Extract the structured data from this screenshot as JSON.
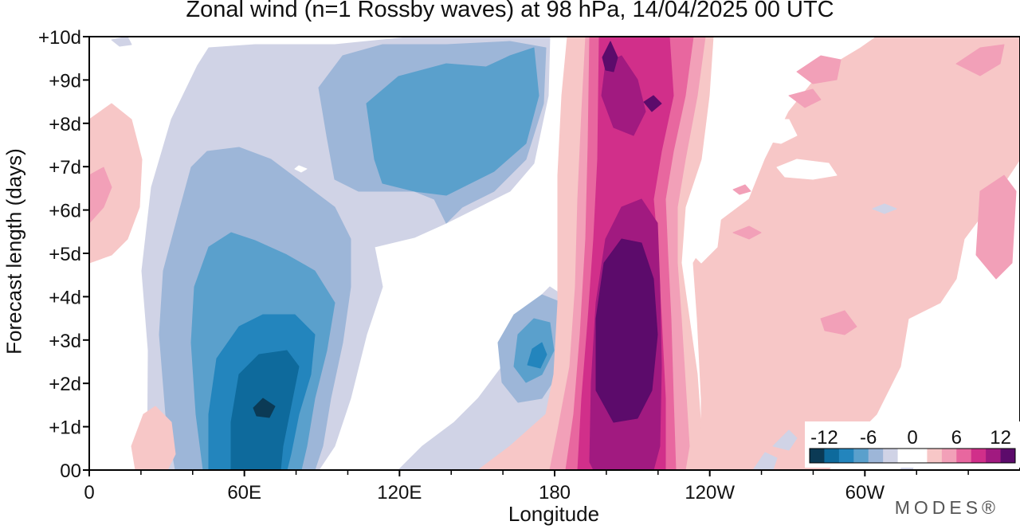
{
  "chart_data": {
    "type": "heatmap",
    "title": "Zonal wind (n=1 Rossby waves) at 98 hPa,  14/04/2025  00 UTC",
    "xlabel": "Longitude",
    "ylabel": "Forecast length (days)",
    "x_ticks": [
      "0",
      "60E",
      "120E",
      "180",
      "120W",
      "60W"
    ],
    "y_ticks": [
      "00",
      "+1d",
      "+2d",
      "+3d",
      "+4d",
      "+5d",
      "+6d",
      "+7d",
      "+8d",
      "+9d",
      "+10d"
    ],
    "xlim": [
      0,
      360
    ],
    "ylim": [
      0,
      10
    ],
    "legend": {
      "ticks": [
        "-12",
        "-6",
        "0",
        "6",
        "12"
      ],
      "levels": [
        -14,
        -12,
        -10,
        -8,
        -6,
        -4,
        -2,
        0,
        2,
        4,
        6,
        8,
        10,
        12,
        14
      ],
      "colors": [
        "#0b3a55",
        "#0e6a9c",
        "#2385bd",
        "#5aa0cc",
        "#9db6d8",
        "#d0d3e6",
        "#ffffff",
        "#ffffff",
        "#f7c7c7",
        "#f2a0b8",
        "#e8679f",
        "#d12f8a",
        "#a11a80",
        "#5c0b6b"
      ]
    },
    "features": [
      {
        "lon": 70,
        "day": 2.8,
        "value": -12
      },
      {
        "lon": 70,
        "day": 4.0,
        "value": -9
      },
      {
        "lon": 140,
        "day": 8.0,
        "value": -8
      },
      {
        "lon": 173,
        "day": 3.0,
        "value": -9
      },
      {
        "lon": 205,
        "day": 3.5,
        "value": 14
      },
      {
        "lon": 202,
        "day": 9.0,
        "value": 12
      },
      {
        "lon": 290,
        "day": 3.5,
        "value": 5
      },
      {
        "lon": 340,
        "day": 9.3,
        "value": 5
      }
    ],
    "brand": "MODES®"
  }
}
